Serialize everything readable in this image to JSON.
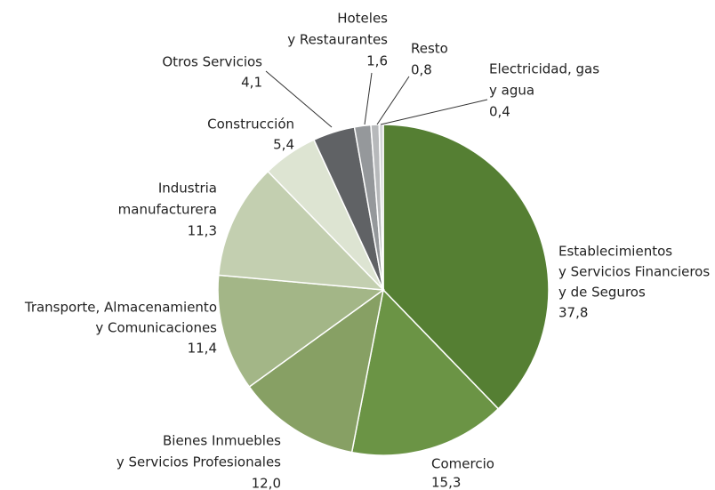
{
  "chart_data": {
    "type": "pie",
    "categories": [
      [
        "Establecimientos",
        "y Servicios Financieros",
        "y de Seguros"
      ],
      [
        "Comercio"
      ],
      [
        "Bienes Inmuebles",
        "y Servicios Profesionales"
      ],
      [
        "Transporte, Almacenamiento",
        "y Comunicaciones"
      ],
      [
        "Industria",
        "manufacturera"
      ],
      [
        "Construcción"
      ],
      [
        "Otros Servicios"
      ],
      [
        "Hoteles",
        "y Restaurantes"
      ],
      [
        "Resto"
      ],
      [
        "Electricidad, gas",
        "y agua"
      ]
    ],
    "values": [
      37.8,
      15.3,
      12.0,
      11.4,
      11.3,
      5.4,
      4.1,
      1.6,
      0.8,
      0.4
    ],
    "value_labels": [
      "37,8",
      "15,3",
      "12,0",
      "11,4",
      "11,3",
      "5,4",
      "4,1",
      "1,6",
      "0,8",
      "0,4"
    ],
    "colors": [
      "#557f33",
      "#6b9445",
      "#87a064",
      "#a3b687",
      "#c3cfb0",
      "#dde4d2",
      "#606265",
      "#95989b",
      "#b7b9bb",
      "#d3d5d7"
    ]
  }
}
